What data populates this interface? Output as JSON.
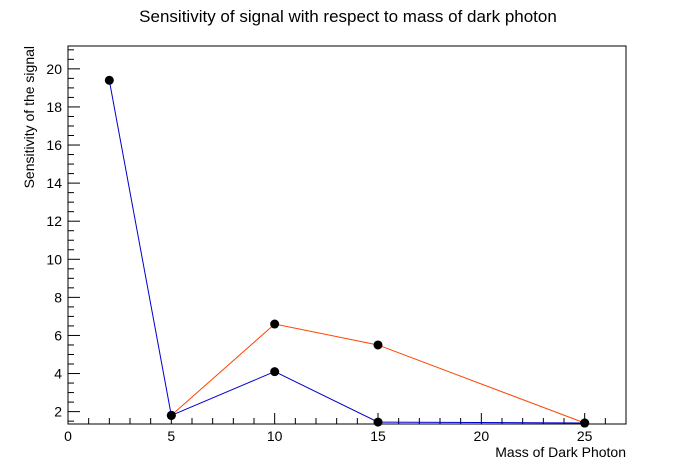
{
  "chart_data": {
    "type": "line",
    "title": "Sensitivity of signal with respect to mass of dark photon",
    "xlabel": "Mass of Dark Photon",
    "ylabel": "Sensitivity of the signal",
    "xlim": [
      0,
      27
    ],
    "ylim": [
      1.35,
      21.2
    ],
    "x_ticks": [
      0,
      5,
      10,
      15,
      20,
      25
    ],
    "y_ticks": [
      2,
      4,
      6,
      8,
      10,
      12,
      14,
      16,
      18,
      20
    ],
    "grid": false,
    "series": [
      {
        "color": "#0000cc",
        "x": [
          2,
          5,
          10,
          15,
          25
        ],
        "y": [
          19.4,
          1.8,
          4.1,
          1.45,
          1.4
        ]
      },
      {
        "color": "#ff4400",
        "x": [
          5,
          10,
          15,
          25
        ],
        "y": [
          1.8,
          6.6,
          5.5,
          1.4
        ]
      }
    ],
    "marker_color": "#000000"
  }
}
